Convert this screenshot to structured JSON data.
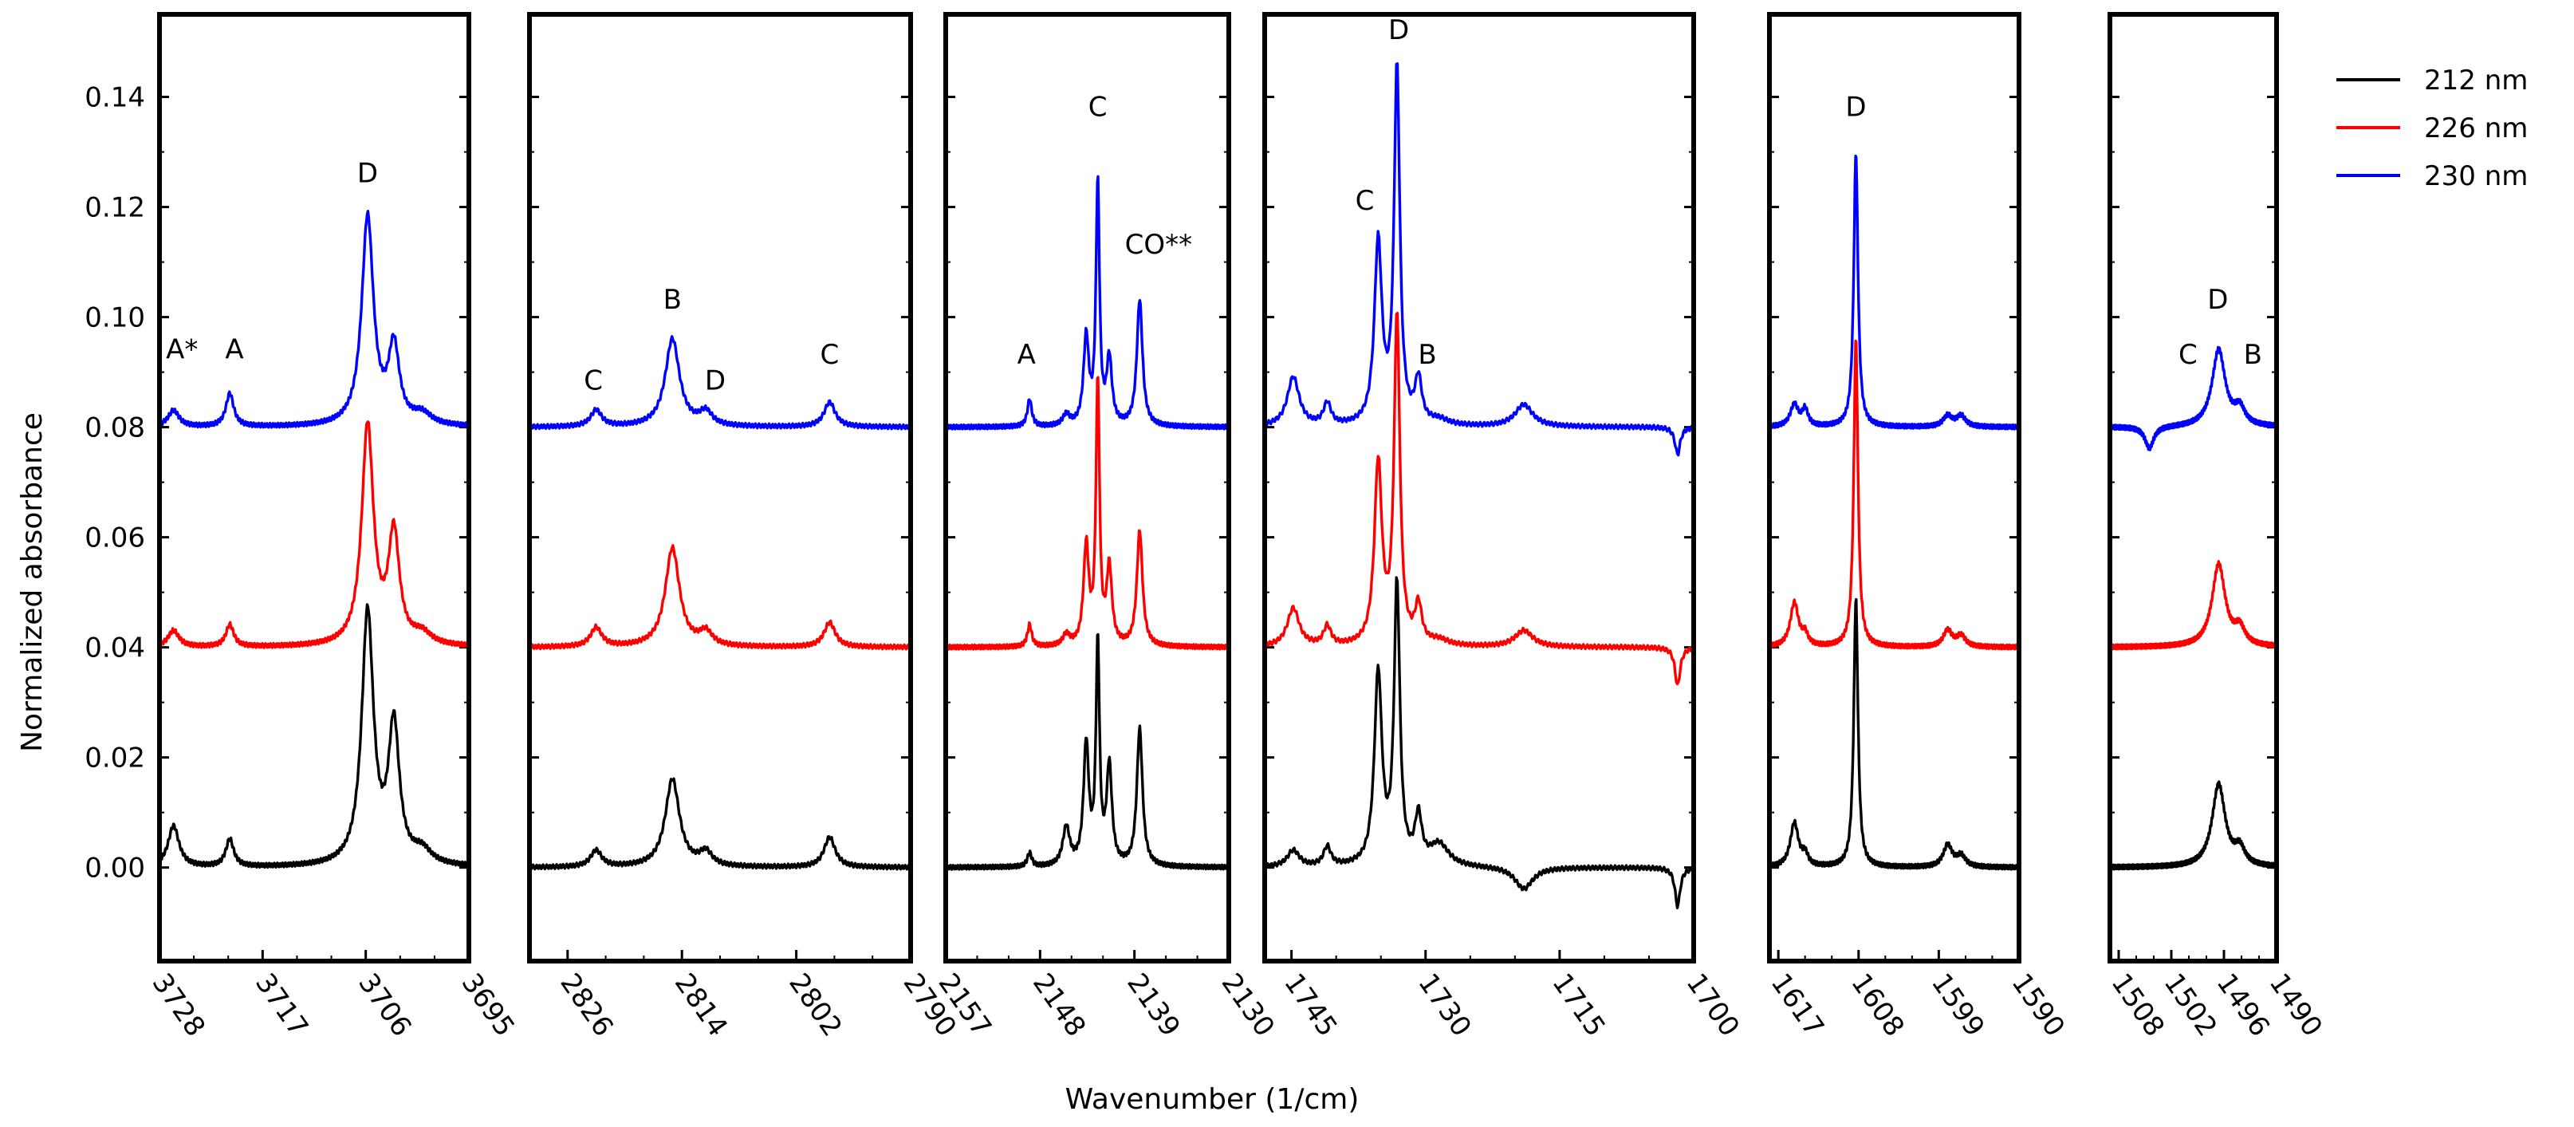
{
  "chart_data": {
    "type": "line",
    "xlabel": "Wavenumber (1/cm)",
    "ylabel": "Normalized absorbance",
    "ylim": [
      -0.017,
      0.155
    ],
    "yticks": [
      0.0,
      0.02,
      0.04,
      0.06,
      0.08,
      0.1,
      0.12,
      0.14
    ],
    "ytick_labels": [
      "0.00",
      "0.02",
      "0.04",
      "0.06",
      "0.08",
      "0.10",
      "0.12",
      "0.14"
    ],
    "legend": {
      "placement": "top-right, outside plot",
      "entries": [
        {
          "label": "212 nm",
          "color": "#000000"
        },
        {
          "label": "226 nm",
          "color": "#ff0000"
        },
        {
          "label": "230 nm",
          "color": "#0000ff"
        }
      ]
    },
    "series": [
      {
        "name": "212 nm",
        "color": "#000000",
        "offset": 0.0
      },
      {
        "name": "226 nm",
        "color": "#ff0000",
        "offset": 0.04
      },
      {
        "name": "230 nm",
        "color": "#0000ff",
        "offset": 0.08
      }
    ],
    "panels": [
      {
        "xrange": [
          3728,
          3695
        ],
        "xticks": [
          3728,
          3717,
          3706,
          3695
        ],
        "xtick_labels": [
          "3728",
          "3717",
          "3706",
          "3695"
        ],
        "peaks": [
          {
            "x": 3726.5,
            "w": 0.7,
            "h": [
              0.0075,
              0.003,
              0.003
            ]
          },
          {
            "x": 3720.5,
            "w": 0.5,
            "h": [
              0.005,
              0.004,
              0.006
            ]
          },
          {
            "x": 3705.8,
            "w": 0.75,
            "h": [
              0.046,
              0.04,
              0.038
            ]
          },
          {
            "x": 3703.0,
            "w": 0.7,
            "h": [
              0.025,
              0.02,
              0.014
            ]
          },
          {
            "x": 3700.0,
            "w": 1.2,
            "h": [
              0.0025,
              0.002,
              0.002
            ]
          }
        ],
        "labels": [
          {
            "text": "A*",
            "x": 3725.6,
            "y": 0.0925
          },
          {
            "text": "A",
            "x": 3720.0,
            "y": 0.0925
          },
          {
            "text": "D",
            "x": 3705.8,
            "y": 0.1245
          }
        ]
      },
      {
        "xrange": [
          2830,
          2790
        ],
        "xticks": [
          2826,
          2814,
          2802,
          2790
        ],
        "xtick_labels": [
          "2826",
          "2814",
          "2802",
          "2790"
        ],
        "peaks": [
          {
            "x": 2823.0,
            "w": 0.7,
            "h": [
              0.003,
              0.0035,
              0.003
            ]
          },
          {
            "x": 2815.0,
            "w": 0.9,
            "h": [
              0.016,
              0.018,
              0.016
            ]
          },
          {
            "x": 2811.5,
            "w": 0.8,
            "h": [
              0.0025,
              0.0025,
              0.0025
            ]
          },
          {
            "x": 2798.5,
            "w": 0.7,
            "h": [
              0.0055,
              0.0045,
              0.0045
            ]
          }
        ],
        "labels": [
          {
            "text": "C",
            "x": 2823.3,
            "y": 0.0868
          },
          {
            "text": "B",
            "x": 2815.0,
            "y": 0.1015
          },
          {
            "text": "D",
            "x": 2810.5,
            "y": 0.0868
          },
          {
            "text": "C",
            "x": 2798.5,
            "y": 0.0915
          }
        ]
      },
      {
        "xrange": [
          2157,
          2130
        ],
        "xticks": [
          2157,
          2148,
          2139,
          2130
        ],
        "xtick_labels": [
          "2157",
          "2148",
          "2139",
          "2130"
        ],
        "peaks": [
          {
            "x": 2149.0,
            "w": 0.25,
            "h": [
              0.0025,
              0.004,
              0.005
            ]
          },
          {
            "x": 2145.5,
            "w": 0.4,
            "h": [
              0.007,
              0.002,
              0.002
            ]
          },
          {
            "x": 2143.6,
            "w": 0.3,
            "h": [
              0.022,
              0.018,
              0.016
            ]
          },
          {
            "x": 2142.5,
            "w": 0.2,
            "h": [
              0.04,
              0.048,
              0.044
            ]
          },
          {
            "x": 2141.4,
            "w": 0.3,
            "h": [
              0.018,
              0.014,
              0.012
            ]
          },
          {
            "x": 2138.5,
            "w": 0.32,
            "h": [
              0.025,
              0.021,
              0.023
            ]
          }
        ],
        "labels": [
          {
            "text": "A",
            "x": 2149.3,
            "y": 0.0915
          },
          {
            "text": "C",
            "x": 2142.5,
            "y": 0.1365
          },
          {
            "text": "CO**",
            "x": 2136.7,
            "y": 0.1115
          }
        ]
      },
      {
        "xrange": [
          1748,
          1700
        ],
        "xticks": [
          1745,
          1730,
          1715,
          1700
        ],
        "xtick_labels": [
          "1745",
          "1730",
          "1715",
          "1700"
        ],
        "peaks": [
          {
            "x": 1744.8,
            "w": 0.8,
            "h": [
              0.003,
              0.007,
              0.009
            ]
          },
          {
            "x": 1741.0,
            "w": 0.5,
            "h": [
              0.0035,
              0.0035,
              0.004
            ]
          },
          {
            "x": 1735.3,
            "w": 0.5,
            "h": [
              0.035,
              0.033,
              0.033
            ]
          },
          {
            "x": 1733.2,
            "w": 0.38,
            "h": [
              0.051,
              0.06,
              0.065
            ]
          },
          {
            "x": 1730.8,
            "w": 0.45,
            "h": [
              0.0085,
              0.007,
              0.008
            ]
          },
          {
            "x": 1728.5,
            "w": 1.3,
            "h": [
              0.004,
              0.001,
              0.001
            ]
          },
          {
            "x": 1719.0,
            "w": 1.2,
            "h": [
              -0.004,
              0.003,
              0.004
            ]
          },
          {
            "x": 1701.8,
            "w": 0.35,
            "h": [
              -0.007,
              -0.007,
              -0.005
            ]
          }
        ],
        "labels": [
          {
            "text": "C",
            "x": 1736.8,
            "y": 0.1195
          },
          {
            "text": "D",
            "x": 1733.0,
            "y": 0.1505
          },
          {
            "text": "B",
            "x": 1729.8,
            "y": 0.0915
          }
        ]
      },
      {
        "xrange": [
          1618,
          1590
        ],
        "xticks": [
          1617,
          1608,
          1599,
          1590
        ],
        "xtick_labels": [
          "1617",
          "1608",
          "1599",
          "1590"
        ],
        "peaks": [
          {
            "x": 1615.2,
            "w": 0.55,
            "h": [
              0.008,
              0.008,
              0.004
            ]
          },
          {
            "x": 1614.0,
            "w": 0.4,
            "h": [
              0.002,
              0.002,
              0.003
            ]
          },
          {
            "x": 1608.3,
            "w": 0.28,
            "h": [
              0.049,
              0.056,
              0.05
            ]
          },
          {
            "x": 1598.0,
            "w": 0.6,
            "h": [
              0.004,
              0.003,
              0.002
            ]
          },
          {
            "x": 1596.5,
            "w": 0.6,
            "h": [
              0.002,
              0.002,
              0.002
            ]
          }
        ],
        "labels": [
          {
            "text": "D",
            "x": 1608.3,
            "y": 0.1365
          }
        ]
      },
      {
        "xrange": [
          1509,
          1490
        ],
        "xticks": [
          1508,
          1502,
          1496,
          1490
        ],
        "xtick_labels": [
          "1508",
          "1502",
          "1496",
          "1490"
        ],
        "peaks": [
          {
            "x": 1496.6,
            "w": 0.9,
            "h": [
              0.015,
              0.015,
              0.014
            ]
          },
          {
            "x": 1494.2,
            "w": 0.7,
            "h": [
              0.003,
              0.003,
              0.003
            ]
          },
          {
            "x": 1504.5,
            "w": 0.6,
            "h": [
              0.0,
              0.0,
              -0.004
            ]
          }
        ],
        "labels": [
          {
            "text": "C",
            "x": 1500.1,
            "y": 0.0915
          },
          {
            "text": "D",
            "x": 1496.7,
            "y": 0.1015
          },
          {
            "text": "B",
            "x": 1492.7,
            "y": 0.0915
          }
        ]
      }
    ]
  }
}
